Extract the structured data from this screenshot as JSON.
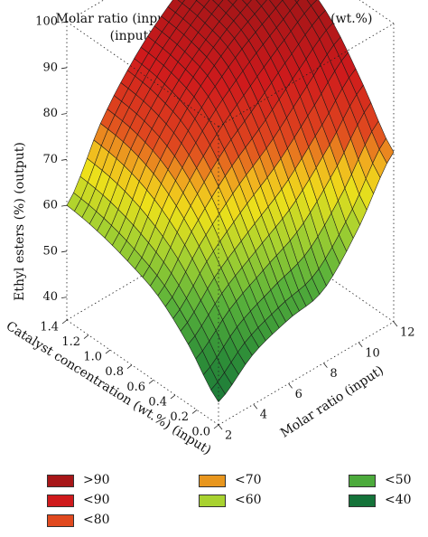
{
  "chart_data": {
    "type": "surface3d",
    "title": [
      "Molar ratio (input), catalyst concentration (wt.%)",
      "(input), ethyl esters (%) (output)"
    ],
    "xlabel": "Molar ratio (input)",
    "ylabel": "Catalyst concentration (wt.%) (input)",
    "zlabel": "Ethyl esters (%) (output)",
    "x_ticks": [
      2,
      4,
      6,
      8,
      10,
      12
    ],
    "y_ticks": [
      "0.0",
      "0.2",
      "0.4",
      "0.6",
      "0.8",
      "1.0",
      "1.2",
      "1.4"
    ],
    "z_ticks": [
      40,
      50,
      60,
      70,
      80,
      90,
      100
    ],
    "xlim": [
      2,
      12
    ],
    "ylim": [
      0,
      1.4
    ],
    "zlim": [
      35,
      100
    ],
    "x": [
      2,
      4,
      6,
      8,
      10,
      12
    ],
    "y": [
      0,
      0.28,
      0.56,
      0.84,
      1.12,
      1.4
    ],
    "z": [
      [
        40,
        46,
        49,
        51,
        60,
        72
      ],
      [
        48,
        55,
        60,
        65,
        73,
        82
      ],
      [
        54,
        64,
        72,
        78,
        85,
        91
      ],
      [
        57,
        70,
        80,
        87,
        92,
        96
      ],
      [
        59,
        73,
        83,
        90,
        95,
        98
      ],
      [
        60,
        74,
        84,
        91,
        96,
        99
      ]
    ],
    "legend": [
      {
        "label": ">90",
        "color": "#a71618"
      },
      {
        "label": "<90",
        "color": "#cf1a1c"
      },
      {
        "label": "<80",
        "color": "#e0491f"
      },
      {
        "label": "<70",
        "color": "#e8961e"
      },
      {
        "label": "<60",
        "color": "#a8d230"
      },
      {
        "label": "<50",
        "color": "#4caa3c"
      },
      {
        "label": "<40",
        "color": "#15733a"
      }
    ],
    "color_scale": [
      {
        "z": 38,
        "color": "#15733a"
      },
      {
        "z": 46,
        "color": "#2f8f38"
      },
      {
        "z": 53,
        "color": "#5ab23b"
      },
      {
        "z": 60,
        "color": "#a8d230"
      },
      {
        "z": 66,
        "color": "#eee01a"
      },
      {
        "z": 70,
        "color": "#f1b51f"
      },
      {
        "z": 75,
        "color": "#e0491f"
      },
      {
        "z": 84,
        "color": "#cf1a1c"
      },
      {
        "z": 93,
        "color": "#a71618"
      },
      {
        "z": 100,
        "color": "#8e1212"
      }
    ]
  }
}
